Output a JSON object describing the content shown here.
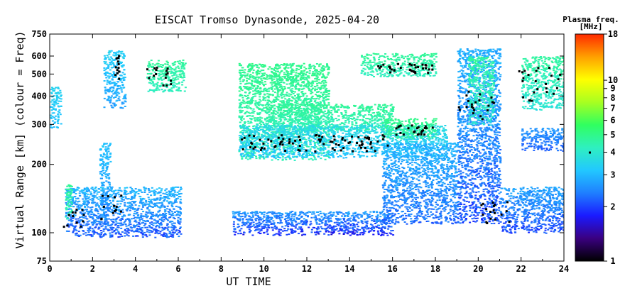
{
  "chart_data": {
    "type": "heatmap",
    "title": "EISCAT Tromso Dynasonde, 2025-04-20",
    "xlabel": "UT TIME",
    "ylabel": "Virtual Range [km] (colour = Freq)",
    "x_range": [
      0,
      24
    ],
    "x_ticks": [
      0,
      2,
      4,
      6,
      8,
      10,
      12,
      14,
      16,
      18,
      20,
      22,
      24
    ],
    "y_scale": "log",
    "y_range": [
      75,
      750
    ],
    "y_ticks": [
      75,
      100,
      200,
      300,
      400,
      500,
      600,
      750
    ],
    "colorbar": {
      "title_line1": "Plasma freq.",
      "title_line2": "[MHz]",
      "scale": "log",
      "range": [
        1,
        18
      ],
      "ticks": [
        1,
        2,
        3,
        4,
        5,
        6,
        7,
        8,
        9,
        10,
        18
      ],
      "stops": [
        "#000000",
        "#3a0080",
        "#1a1aff",
        "#1f7fff",
        "#22c8ff",
        "#2ff0c0",
        "#30ff60",
        "#a8ff20",
        "#ffff00",
        "#ffa000",
        "#ff2a00"
      ]
    },
    "regions": [
      {
        "t": [
          0.0,
          0.5
        ],
        "h": [
          290,
          440
        ],
        "f": [
          3.0,
          3.5
        ]
      },
      {
        "t": [
          0.7,
          6.1
        ],
        "h": [
          96,
          160
        ],
        "f": [
          1.8,
          3.3
        ]
      },
      {
        "t": [
          0.7,
          1.0
        ],
        "h": [
          115,
          165
        ],
        "f": [
          4.0,
          5.0
        ]
      },
      {
        "t": [
          2.3,
          2.8
        ],
        "h": [
          110,
          250
        ],
        "f": [
          2.2,
          3.4
        ]
      },
      {
        "t": [
          2.5,
          3.5
        ],
        "h": [
          350,
          640
        ],
        "f": [
          2.5,
          3.6
        ]
      },
      {
        "t": [
          4.5,
          6.3
        ],
        "h": [
          420,
          580
        ],
        "f": [
          4.0,
          5.0
        ]
      },
      {
        "t": [
          8.5,
          16.0
        ],
        "h": [
          98,
          125
        ],
        "f": [
          1.5,
          3.0
        ]
      },
      {
        "t": [
          8.8,
          13.0
        ],
        "h": [
          210,
          560
        ],
        "f": [
          4.0,
          5.2
        ]
      },
      {
        "t": [
          10.0,
          16.0
        ],
        "h": [
          280,
          370
        ],
        "f": [
          4.0,
          5.0
        ]
      },
      {
        "t": [
          8.8,
          18.5
        ],
        "h": [
          215,
          300
        ],
        "f": [
          3.0,
          3.8
        ]
      },
      {
        "t": [
          14.5,
          18.0
        ],
        "h": [
          490,
          620
        ],
        "f": [
          4.0,
          5.0
        ]
      },
      {
        "t": [
          15.5,
          18.0
        ],
        "h": [
          260,
          320
        ],
        "f": [
          4.2,
          5.2
        ]
      },
      {
        "t": [
          15.5,
          19.0
        ],
        "h": [
          110,
          250
        ],
        "f": [
          2.0,
          3.2
        ]
      },
      {
        "t": [
          19.0,
          21.0
        ],
        "h": [
          110,
          650
        ],
        "f": [
          1.8,
          3.2
        ]
      },
      {
        "t": [
          19.5,
          20.7
        ],
        "h": [
          300,
          600
        ],
        "f": [
          3.5,
          5.0
        ]
      },
      {
        "t": [
          21.0,
          24.0
        ],
        "h": [
          100,
          160
        ],
        "f": [
          1.8,
          3.0
        ]
      },
      {
        "t": [
          22.0,
          24.0
        ],
        "h": [
          230,
          290
        ],
        "f": [
          2.0,
          2.8
        ]
      },
      {
        "t": [
          22.0,
          24.0
        ],
        "h": [
          350,
          600
        ],
        "f": [
          3.5,
          5.0
        ]
      }
    ],
    "traces": [
      {
        "t": [
          0.6,
          1.6
        ],
        "h": [
          105,
          130
        ]
      },
      {
        "t": [
          2.2,
          3.3
        ],
        "h": [
          115,
          150
        ]
      },
      {
        "t": [
          3.0,
          3.2
        ],
        "h": [
          480,
          620
        ]
      },
      {
        "t": [
          4.5,
          5.8
        ],
        "h": [
          440,
          540
        ]
      },
      {
        "t": [
          8.8,
          16.0
        ],
        "h": [
          230,
          275
        ]
      },
      {
        "t": [
          16.0,
          18.0
        ],
        "h": [
          270,
          300
        ]
      },
      {
        "t": [
          15.0,
          18.0
        ],
        "h": [
          510,
          560
        ]
      },
      {
        "t": [
          19.0,
          20.8
        ],
        "h": [
          320,
          430
        ]
      },
      {
        "t": [
          20.0,
          21.5
        ],
        "h": [
          110,
          140
        ]
      },
      {
        "t": [
          21.8,
          23.8
        ],
        "h": [
          380,
          560
        ]
      }
    ]
  }
}
